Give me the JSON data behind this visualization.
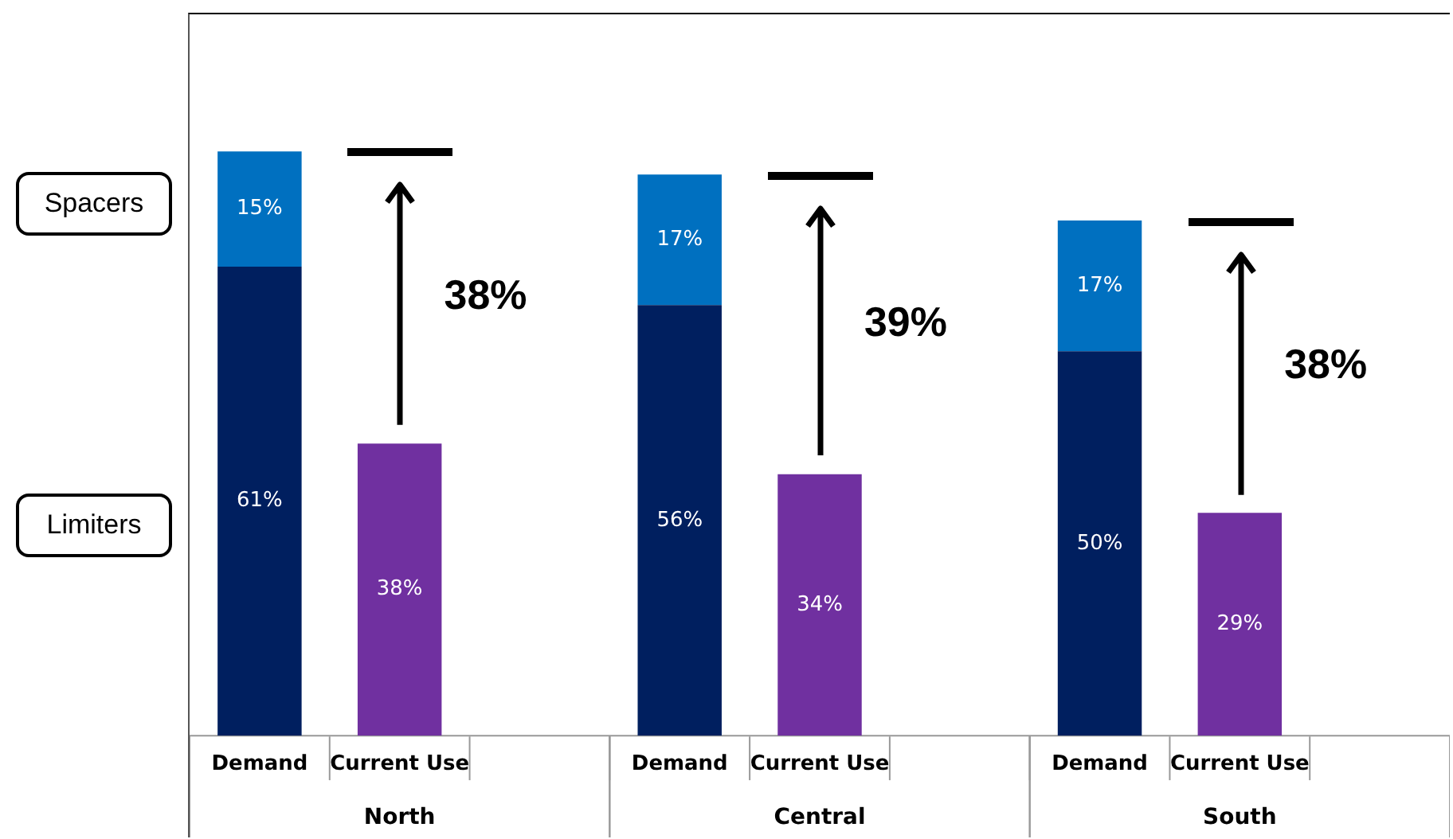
{
  "chart_data": {
    "type": "bar",
    "stacked": true,
    "categories": [
      "Demand",
      "Current Use",
      null,
      "Demand",
      "Current Use",
      null,
      "Demand",
      "Current Use",
      null
    ],
    "series": [
      {
        "name": "Limiters",
        "color": "#001f5f",
        "values": [
          61,
          null,
          null,
          56,
          null,
          null,
          50,
          null,
          null
        ],
        "value_labels": [
          "61%",
          null,
          null,
          "56%",
          null,
          null,
          "50%",
          null,
          null
        ]
      },
      {
        "name": "Spacers",
        "color": "#0070c0",
        "values": [
          15,
          null,
          null,
          17,
          null,
          null,
          17,
          null,
          null
        ],
        "value_labels": [
          "15%",
          null,
          null,
          "17%",
          null,
          null,
          "17%",
          null,
          null
        ]
      },
      {
        "color": "#7030a0",
        "values": [
          null,
          38,
          null,
          null,
          34,
          null,
          null,
          29,
          null
        ],
        "value_labels": [
          null,
          "38%",
          null,
          null,
          "34%",
          null,
          null,
          "29%",
          null
        ]
      }
    ],
    "annotations": [
      "North",
      "Central",
      "South",
      "38%",
      "39%",
      "38%"
    ],
    "legend": false
  }
}
